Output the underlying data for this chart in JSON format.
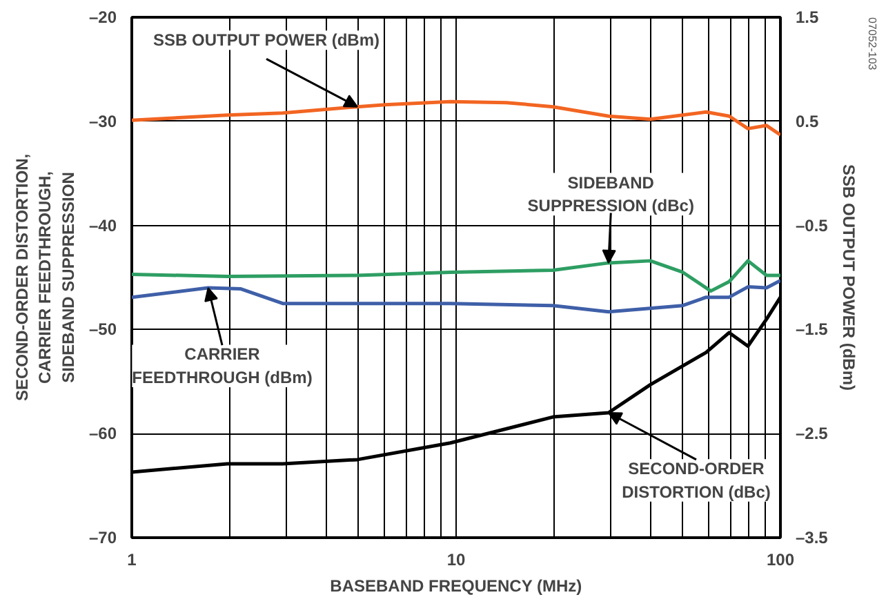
{
  "chart_data": {
    "type": "line",
    "xlabel": "BASEBAND FREQUENCY (MHz)",
    "ylabel": "SECOND-ORDER DISTORTION,\nCARRIER FEEDTHROUGH,\nSIDEBAND SUPPRESSION",
    "y2label": "SSB OUTPUT POWER (dBm)",
    "log": "x",
    "grid": true,
    "line_style": "solid",
    "xlim": [
      1,
      100
    ],
    "xticks": [
      1,
      10,
      100
    ],
    "ylim": [
      -70,
      -20
    ],
    "yticks": [
      {
        "value": -70,
        "label": "–70"
      },
      {
        "value": -60,
        "label": "–60"
      },
      {
        "value": -50,
        "label": "–50"
      },
      {
        "value": -40,
        "label": "–40"
      },
      {
        "value": -30,
        "label": "–30"
      },
      {
        "value": -20,
        "label": "–20"
      }
    ],
    "y2lim": [
      -3.5,
      1.5
    ],
    "y2ticks": [
      {
        "value": -3.5,
        "label": "–3.5"
      },
      {
        "value": -2.5,
        "label": "–2.5"
      },
      {
        "value": -1.5,
        "label": "–1.5"
      },
      {
        "value": -0.5,
        "label": "–0.5"
      },
      0.5,
      1.5
    ],
    "annotations": [
      "07052-103"
    ],
    "series": [
      {
        "name": "SSB OUTPUT POWER (dBm)",
        "color": "#f26522",
        "axis": "y2",
        "x": [
          1,
          1.97,
          2.92,
          4.96,
          6.04,
          9.6,
          14.3,
          19.9,
          29.5,
          39.7,
          59,
          69.5,
          79.4,
          90.6,
          100
        ],
        "values": [
          0.51,
          0.56,
          0.58,
          0.64,
          0.66,
          0.69,
          0.68,
          0.64,
          0.55,
          0.52,
          0.59,
          0.55,
          0.43,
          0.46,
          0.37
        ]
      },
      {
        "name": "SIDEBAND SUPPRESSION (dBc)",
        "color": "#2e9e63",
        "x": [
          1,
          1.97,
          4.96,
          9.6,
          19.9,
          29.5,
          39.7,
          50,
          61,
          69.5,
          79.4,
          90.6,
          100
        ],
        "values": [
          -44.7,
          -44.9,
          -44.8,
          -44.5,
          -44.3,
          -43.6,
          -43.4,
          -44.5,
          -46.3,
          -45.4,
          -43.4,
          -44.8,
          -44.8
        ]
      },
      {
        "name": "CARRIER FEEDTHROUGH (dBm)",
        "color": "#3f5fa8",
        "x": [
          1,
          1.72,
          2.17,
          2.92,
          9.6,
          19.9,
          29.5,
          50,
          59,
          69.5,
          79.4,
          90.6,
          100
        ],
        "values": [
          -46.9,
          -46.0,
          -46.1,
          -47.5,
          -47.5,
          -47.7,
          -48.3,
          -47.7,
          -46.9,
          -46.9,
          -45.9,
          -46.0,
          -45.3
        ]
      },
      {
        "name": "SECOND-ORDER DISTORTION (dBc)",
        "color": "#000000",
        "x": [
          1,
          1.97,
          2.92,
          4.96,
          9.6,
          19.9,
          29.5,
          39.7,
          59,
          69.5,
          79.4,
          90.6,
          100
        ],
        "values": [
          -63.7,
          -62.9,
          -62.9,
          -62.5,
          -60.9,
          -58.4,
          -58.0,
          -55.3,
          -52.2,
          -50.3,
          -51.6,
          -49.0,
          -46.9
        ]
      }
    ]
  }
}
